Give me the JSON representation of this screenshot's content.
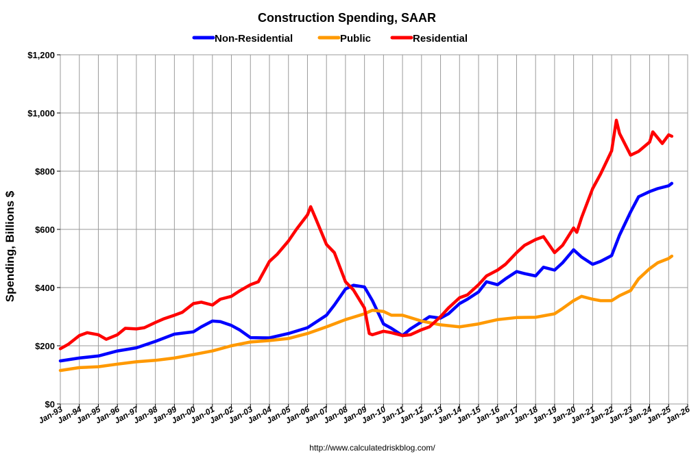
{
  "chart_data": {
    "type": "line",
    "title": "Construction Spending, SAAR",
    "ylabel": "Spending, Billions $",
    "xlabel": "",
    "source": "http://www.calculatedriskblog.com/",
    "ylim": [
      0,
      1200
    ],
    "xlim": [
      "Jan-93",
      "Jan-26"
    ],
    "yticks": [
      "$0",
      "$200",
      "$400",
      "$600",
      "$800",
      "$1,000",
      "$1,200"
    ],
    "xticks": [
      "Jan-93",
      "Jan-94",
      "Jan-95",
      "Jan-96",
      "Jan-97",
      "Jan-98",
      "Jan-99",
      "Jan-00",
      "Jan-01",
      "Jan-02",
      "Jan-03",
      "Jan-04",
      "Jan-05",
      "Jan-06",
      "Jan-07",
      "Jan-08",
      "Jan-09",
      "Jan-10",
      "Jan-11",
      "Jan-12",
      "Jan-13",
      "Jan-14",
      "Jan-15",
      "Jan-16",
      "Jan-17",
      "Jan-18",
      "Jan-19",
      "Jan-20",
      "Jan-21",
      "Jan-22",
      "Jan-23",
      "Jan-24",
      "Jan-25",
      "Jan-26"
    ],
    "grid": true,
    "legend_position": "top",
    "series": [
      {
        "name": "Non-Residential",
        "color": "#0000ff",
        "points": [
          [
            "1993-01",
            148
          ],
          [
            "1994-01",
            158
          ],
          [
            "1995-01",
            165
          ],
          [
            "1996-01",
            182
          ],
          [
            "1997-01",
            193
          ],
          [
            "1998-01",
            215
          ],
          [
            "1999-01",
            240
          ],
          [
            "2000-01",
            248
          ],
          [
            "2000-06",
            265
          ],
          [
            "2001-01",
            285
          ],
          [
            "2001-06",
            283
          ],
          [
            "2002-01",
            270
          ],
          [
            "2002-06",
            255
          ],
          [
            "2003-01",
            228
          ],
          [
            "2004-01",
            227
          ],
          [
            "2005-01",
            242
          ],
          [
            "2006-01",
            262
          ],
          [
            "2007-01",
            305
          ],
          [
            "2007-06",
            340
          ],
          [
            "2008-01",
            395
          ],
          [
            "2008-06",
            408
          ],
          [
            "2009-01",
            402
          ],
          [
            "2009-06",
            355
          ],
          [
            "2010-01",
            275
          ],
          [
            "2010-06",
            260
          ],
          [
            "2011-01",
            235
          ],
          [
            "2011-06",
            258
          ],
          [
            "2012-01",
            282
          ],
          [
            "2012-06",
            300
          ],
          [
            "2013-01",
            295
          ],
          [
            "2013-06",
            310
          ],
          [
            "2014-01",
            345
          ],
          [
            "2014-06",
            360
          ],
          [
            "2015-01",
            385
          ],
          [
            "2015-06",
            420
          ],
          [
            "2016-01",
            410
          ],
          [
            "2016-06",
            430
          ],
          [
            "2017-01",
            455
          ],
          [
            "2017-06",
            448
          ],
          [
            "2018-01",
            440
          ],
          [
            "2018-06",
            470
          ],
          [
            "2019-01",
            460
          ],
          [
            "2019-06",
            485
          ],
          [
            "2020-01",
            530
          ],
          [
            "2020-06",
            505
          ],
          [
            "2021-01",
            480
          ],
          [
            "2021-06",
            490
          ],
          [
            "2022-01",
            510
          ],
          [
            "2022-06",
            580
          ],
          [
            "2023-01",
            660
          ],
          [
            "2023-06",
            712
          ],
          [
            "2024-01",
            730
          ],
          [
            "2024-06",
            740
          ],
          [
            "2025-01",
            750
          ],
          [
            "2025-03",
            758
          ]
        ]
      },
      {
        "name": "Public",
        "color": "#ff9900",
        "points": [
          [
            "1993-01",
            115
          ],
          [
            "1994-01",
            125
          ],
          [
            "1995-01",
            128
          ],
          [
            "1996-01",
            137
          ],
          [
            "1997-01",
            145
          ],
          [
            "1998-01",
            150
          ],
          [
            "1999-01",
            158
          ],
          [
            "2000-01",
            170
          ],
          [
            "2001-01",
            182
          ],
          [
            "2002-01",
            200
          ],
          [
            "2003-01",
            213
          ],
          [
            "2004-01",
            218
          ],
          [
            "2005-01",
            225
          ],
          [
            "2006-01",
            242
          ],
          [
            "2007-01",
            265
          ],
          [
            "2008-01",
            290
          ],
          [
            "2009-01",
            310
          ],
          [
            "2009-06",
            322
          ],
          [
            "2010-01",
            318
          ],
          [
            "2010-06",
            305
          ],
          [
            "2011-01",
            305
          ],
          [
            "2012-01",
            285
          ],
          [
            "2013-01",
            272
          ],
          [
            "2014-01",
            265
          ],
          [
            "2015-01",
            275
          ],
          [
            "2016-01",
            290
          ],
          [
            "2017-01",
            297
          ],
          [
            "2018-01",
            298
          ],
          [
            "2019-01",
            310
          ],
          [
            "2019-06",
            328
          ],
          [
            "2020-01",
            355
          ],
          [
            "2020-06",
            370
          ],
          [
            "2021-01",
            360
          ],
          [
            "2021-06",
            355
          ],
          [
            "2022-01",
            355
          ],
          [
            "2022-06",
            372
          ],
          [
            "2023-01",
            390
          ],
          [
            "2023-06",
            430
          ],
          [
            "2024-01",
            465
          ],
          [
            "2024-06",
            485
          ],
          [
            "2025-01",
            500
          ],
          [
            "2025-03",
            508
          ]
        ]
      },
      {
        "name": "Residential",
        "color": "#ff0000",
        "points": [
          [
            "1993-01",
            190
          ],
          [
            "1993-06",
            205
          ],
          [
            "1994-01",
            235
          ],
          [
            "1994-06",
            245
          ],
          [
            "1995-01",
            238
          ],
          [
            "1995-06",
            222
          ],
          [
            "1996-01",
            238
          ],
          [
            "1996-06",
            260
          ],
          [
            "1997-01",
            258
          ],
          [
            "1997-06",
            262
          ],
          [
            "1998-01",
            280
          ],
          [
            "1998-06",
            292
          ],
          [
            "1999-01",
            305
          ],
          [
            "1999-06",
            315
          ],
          [
            "2000-01",
            345
          ],
          [
            "2000-06",
            350
          ],
          [
            "2001-01",
            340
          ],
          [
            "2001-06",
            360
          ],
          [
            "2002-01",
            370
          ],
          [
            "2002-06",
            388
          ],
          [
            "2003-01",
            410
          ],
          [
            "2003-06",
            420
          ],
          [
            "2004-01",
            490
          ],
          [
            "2004-06",
            515
          ],
          [
            "2005-01",
            560
          ],
          [
            "2005-06",
            600
          ],
          [
            "2006-01",
            650
          ],
          [
            "2006-03",
            678
          ],
          [
            "2006-06",
            640
          ],
          [
            "2007-01",
            548
          ],
          [
            "2007-06",
            520
          ],
          [
            "2008-01",
            420
          ],
          [
            "2008-06",
            392
          ],
          [
            "2009-01",
            330
          ],
          [
            "2009-04",
            242
          ],
          [
            "2009-06",
            238
          ],
          [
            "2010-01",
            250
          ],
          [
            "2010-06",
            245
          ],
          [
            "2011-01",
            235
          ],
          [
            "2011-06",
            238
          ],
          [
            "2012-01",
            255
          ],
          [
            "2012-06",
            265
          ],
          [
            "2013-01",
            300
          ],
          [
            "2013-06",
            330
          ],
          [
            "2014-01",
            365
          ],
          [
            "2014-06",
            375
          ],
          [
            "2015-01",
            410
          ],
          [
            "2015-06",
            440
          ],
          [
            "2016-01",
            460
          ],
          [
            "2016-06",
            480
          ],
          [
            "2017-01",
            520
          ],
          [
            "2017-06",
            545
          ],
          [
            "2018-01",
            565
          ],
          [
            "2018-06",
            575
          ],
          [
            "2019-01",
            520
          ],
          [
            "2019-06",
            545
          ],
          [
            "2020-01",
            605
          ],
          [
            "2020-03",
            590
          ],
          [
            "2020-06",
            640
          ],
          [
            "2021-01",
            740
          ],
          [
            "2021-06",
            790
          ],
          [
            "2022-01",
            870
          ],
          [
            "2022-04",
            975
          ],
          [
            "2022-06",
            930
          ],
          [
            "2023-01",
            855
          ],
          [
            "2023-06",
            868
          ],
          [
            "2024-01",
            900
          ],
          [
            "2024-03",
            935
          ],
          [
            "2024-06",
            915
          ],
          [
            "2024-09",
            895
          ],
          [
            "2025-01",
            925
          ],
          [
            "2025-03",
            920
          ]
        ]
      }
    ]
  }
}
